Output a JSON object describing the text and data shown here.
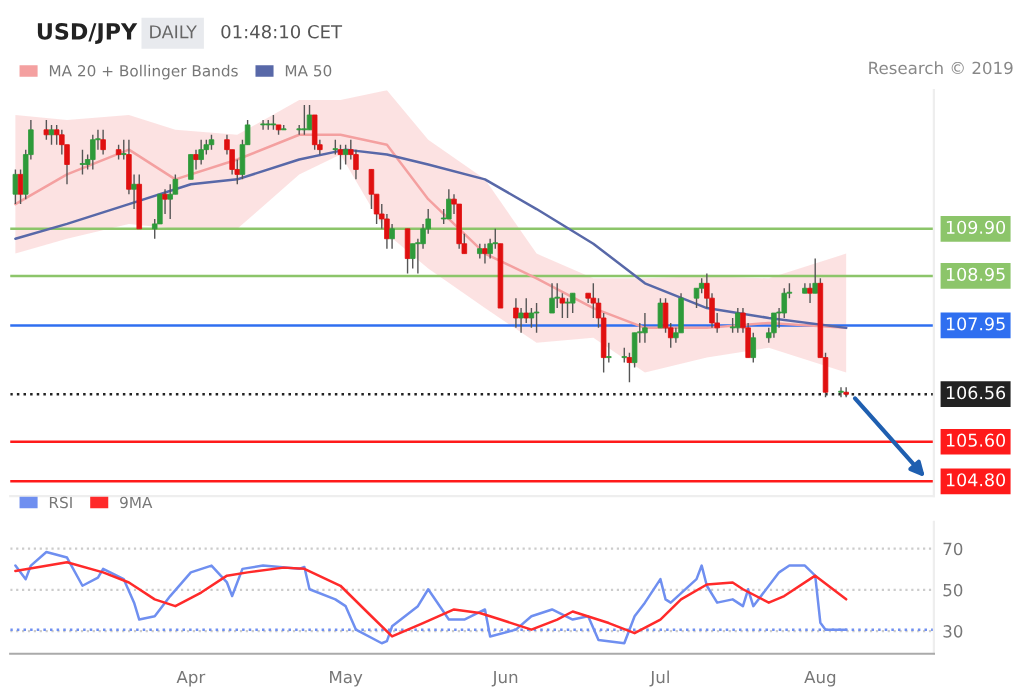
{
  "chart_data": [
    {
      "type": "candlestick",
      "title": "USD/JPY",
      "subtitle": "DAILY",
      "annotations": [
        "01:48:10 CET",
        "Research © 2019"
      ],
      "x": [
        "2019-02-26",
        "2019-02-27",
        "2019-02-28",
        "2019-03-01",
        "2019-03-04",
        "2019-03-05",
        "2019-03-06",
        "2019-03-07",
        "2019-03-08",
        "2019-03-11",
        "2019-03-12",
        "2019-03-13",
        "2019-03-14",
        "2019-03-15",
        "2019-03-18",
        "2019-03-19",
        "2019-03-20",
        "2019-03-21",
        "2019-03-22",
        "2019-03-25",
        "2019-03-26",
        "2019-03-27",
        "2019-03-28",
        "2019-03-29",
        "2019-04-01",
        "2019-04-02",
        "2019-04-03",
        "2019-04-04",
        "2019-04-05",
        "2019-04-08",
        "2019-04-09",
        "2019-04-10",
        "2019-04-11",
        "2019-04-12",
        "2019-04-15",
        "2019-04-16",
        "2019-04-17",
        "2019-04-18",
        "2019-04-19",
        "2019-04-22",
        "2019-04-23",
        "2019-04-24",
        "2019-04-25",
        "2019-04-26",
        "2019-04-29",
        "2019-04-30",
        "2019-05-01",
        "2019-05-02",
        "2019-05-03",
        "2019-05-06",
        "2019-05-07",
        "2019-05-08",
        "2019-05-09",
        "2019-05-10",
        "2019-05-13",
        "2019-05-14",
        "2019-05-15",
        "2019-05-16",
        "2019-05-17",
        "2019-05-20",
        "2019-05-21",
        "2019-05-22",
        "2019-05-23",
        "2019-05-24",
        "2019-05-27",
        "2019-05-28",
        "2019-05-29",
        "2019-05-30",
        "2019-05-31",
        "2019-06-03",
        "2019-06-04",
        "2019-06-05",
        "2019-06-06",
        "2019-06-07",
        "2019-06-10",
        "2019-06-11",
        "2019-06-12",
        "2019-06-13",
        "2019-06-14",
        "2019-06-17",
        "2019-06-18",
        "2019-06-19",
        "2019-06-20",
        "2019-06-21",
        "2019-06-24",
        "2019-06-25",
        "2019-06-26",
        "2019-06-27",
        "2019-06-28",
        "2019-07-01",
        "2019-07-02",
        "2019-07-03",
        "2019-07-04",
        "2019-07-05",
        "2019-07-08",
        "2019-07-09",
        "2019-07-10",
        "2019-07-11",
        "2019-07-12",
        "2019-07-15",
        "2019-07-16",
        "2019-07-17",
        "2019-07-18",
        "2019-07-19",
        "2019-07-22",
        "2019-07-23",
        "2019-07-24",
        "2019-07-25",
        "2019-07-26",
        "2019-07-29",
        "2019-07-30",
        "2019-07-31",
        "2019-08-01",
        "2019-08-02",
        "2019-08-05",
        "2019-08-06"
      ],
      "ohlc": [
        [
          110.6,
          111.1,
          110.4,
          111.0
        ],
        [
          111.0,
          111.1,
          110.4,
          110.6
        ],
        [
          110.6,
          111.5,
          110.5,
          111.4
        ],
        [
          111.4,
          112.1,
          111.3,
          111.9
        ],
        [
          111.9,
          112.1,
          111.7,
          111.8
        ],
        [
          111.8,
          112.0,
          111.6,
          111.9
        ],
        [
          111.9,
          112.0,
          111.6,
          111.8
        ],
        [
          111.8,
          111.9,
          111.4,
          111.6
        ],
        [
          111.6,
          111.6,
          110.8,
          111.2
        ],
        [
          111.2,
          111.5,
          111.0,
          111.2
        ],
        [
          111.2,
          111.4,
          111.1,
          111.3
        ],
        [
          111.3,
          111.8,
          111.1,
          111.7
        ],
        [
          111.7,
          111.9,
          111.5,
          111.7
        ],
        [
          111.7,
          111.9,
          111.4,
          111.5
        ],
        [
          111.5,
          111.6,
          111.3,
          111.4
        ],
        [
          111.4,
          111.7,
          111.3,
          111.4
        ],
        [
          111.4,
          111.7,
          110.6,
          110.7
        ],
        [
          110.7,
          111.0,
          110.3,
          110.8
        ],
        [
          110.8,
          111.0,
          109.9,
          109.9
        ],
        [
          109.9,
          110.1,
          109.7,
          110.0
        ],
        [
          110.0,
          110.6,
          110.0,
          110.6
        ],
        [
          110.6,
          110.7,
          110.2,
          110.5
        ],
        [
          110.5,
          110.8,
          110.1,
          110.6
        ],
        [
          110.6,
          111.0,
          110.6,
          110.9
        ],
        [
          110.9,
          111.4,
          110.9,
          111.4
        ],
        [
          111.4,
          111.5,
          111.1,
          111.3
        ],
        [
          111.3,
          111.7,
          111.2,
          111.5
        ],
        [
          111.5,
          111.7,
          111.4,
          111.6
        ],
        [
          111.6,
          111.8,
          111.5,
          111.7
        ],
        [
          111.7,
          111.8,
          111.4,
          111.5
        ],
        [
          111.5,
          111.5,
          111.0,
          111.1
        ],
        [
          111.1,
          111.3,
          110.8,
          111.0
        ],
        [
          111.0,
          111.7,
          110.9,
          111.6
        ],
        [
          111.6,
          112.1,
          111.6,
          112.0
        ],
        [
          112.0,
          112.1,
          111.9,
          112.0
        ],
        [
          112.0,
          112.1,
          111.9,
          112.0
        ],
        [
          112.0,
          112.2,
          111.9,
          112.0
        ],
        [
          112.0,
          112.0,
          111.8,
          111.9
        ],
        [
          111.9,
          112.0,
          111.9,
          111.9
        ],
        [
          111.9,
          112.0,
          111.8,
          111.9
        ],
        [
          111.9,
          112.4,
          111.8,
          111.9
        ],
        [
          111.9,
          112.4,
          111.9,
          112.2
        ],
        [
          112.2,
          112.2,
          111.5,
          111.6
        ],
        [
          111.6,
          111.7,
          111.4,
          111.5
        ],
        [
          111.5,
          111.7,
          111.4,
          111.5
        ],
        [
          111.5,
          111.6,
          111.1,
          111.4
        ],
        [
          111.4,
          111.6,
          111.2,
          111.5
        ],
        [
          111.5,
          111.7,
          111.3,
          111.4
        ],
        [
          111.4,
          111.5,
          110.9,
          111.1
        ],
        [
          111.1,
          111.1,
          110.3,
          110.6
        ],
        [
          110.6,
          110.6,
          110.0,
          110.2
        ],
        [
          110.2,
          110.4,
          109.9,
          110.1
        ],
        [
          110.1,
          110.2,
          109.5,
          109.7
        ],
        [
          109.7,
          110.0,
          109.5,
          109.9
        ],
        [
          109.9,
          109.9,
          109.0,
          109.3
        ],
        [
          109.3,
          109.6,
          109.1,
          109.6
        ],
        [
          109.6,
          109.7,
          109.0,
          109.6
        ],
        [
          109.6,
          110.0,
          109.5,
          109.9
        ],
        [
          109.9,
          110.3,
          109.8,
          110.1
        ],
        [
          110.1,
          110.3,
          110.0,
          110.1
        ],
        [
          110.1,
          110.7,
          110.1,
          110.5
        ],
        [
          110.5,
          110.6,
          110.2,
          110.4
        ],
        [
          110.4,
          110.4,
          109.5,
          109.6
        ],
        [
          109.6,
          109.8,
          109.4,
          109.4
        ],
        [
          109.4,
          109.6,
          109.3,
          109.5
        ],
        [
          109.5,
          109.6,
          109.2,
          109.4
        ],
        [
          109.4,
          109.7,
          109.3,
          109.6
        ],
        [
          109.6,
          109.9,
          109.5,
          109.6
        ],
        [
          109.6,
          109.6,
          108.3,
          108.3
        ],
        [
          108.3,
          108.5,
          107.9,
          108.1
        ],
        [
          108.1,
          108.3,
          107.8,
          108.2
        ],
        [
          108.2,
          108.5,
          108.0,
          108.1
        ],
        [
          108.1,
          108.3,
          107.9,
          108.2
        ],
        [
          108.2,
          108.4,
          107.8,
          108.2
        ],
        [
          108.2,
          108.8,
          108.2,
          108.5
        ],
        [
          108.5,
          108.8,
          108.3,
          108.5
        ],
        [
          108.5,
          108.6,
          108.1,
          108.4
        ],
        [
          108.4,
          108.5,
          108.1,
          108.4
        ],
        [
          108.4,
          108.6,
          108.2,
          108.6
        ],
        [
          108.6,
          108.6,
          108.4,
          108.5
        ],
        [
          108.5,
          108.8,
          108.1,
          108.4
        ],
        [
          108.4,
          108.5,
          107.9,
          108.1
        ],
        [
          108.1,
          108.2,
          107.0,
          107.3
        ],
        [
          107.3,
          107.6,
          107.2,
          107.3
        ],
        [
          107.3,
          107.5,
          107.2,
          107.3
        ],
        [
          107.3,
          107.4,
          106.8,
          107.2
        ],
        [
          107.2,
          107.8,
          107.1,
          107.8
        ],
        [
          107.8,
          108.0,
          107.6,
          107.8
        ],
        [
          107.8,
          108.2,
          107.6,
          107.9
        ],
        [
          107.9,
          108.5,
          107.9,
          108.4
        ],
        [
          108.4,
          108.5,
          107.8,
          107.9
        ],
        [
          107.9,
          108.0,
          107.5,
          107.7
        ],
        [
          107.7,
          107.9,
          107.6,
          107.8
        ],
        [
          107.8,
          108.6,
          107.8,
          108.5
        ],
        [
          108.5,
          108.7,
          108.3,
          108.7
        ],
        [
          108.7,
          108.9,
          108.6,
          108.8
        ],
        [
          108.8,
          109.0,
          108.3,
          108.5
        ],
        [
          108.5,
          108.6,
          107.9,
          108.0
        ],
        [
          108.0,
          108.2,
          107.8,
          107.9
        ],
        [
          107.9,
          108.1,
          107.8,
          107.9
        ],
        [
          107.9,
          108.3,
          107.8,
          108.2
        ],
        [
          108.2,
          108.3,
          107.8,
          107.9
        ],
        [
          107.9,
          108.0,
          107.3,
          107.3
        ],
        [
          107.3,
          107.8,
          107.2,
          107.7
        ],
        [
          107.7,
          107.9,
          107.6,
          107.8
        ],
        [
          107.8,
          108.2,
          107.7,
          108.2
        ],
        [
          108.2,
          108.3,
          107.9,
          108.2
        ],
        [
          108.2,
          108.7,
          108.1,
          108.6
        ],
        [
          108.6,
          108.8,
          108.5,
          108.6
        ],
        [
          108.6,
          108.8,
          108.6,
          108.7
        ],
        [
          108.7,
          108.8,
          108.4,
          108.6
        ],
        [
          108.6,
          109.3,
          108.6,
          108.8
        ],
        [
          108.8,
          108.9,
          107.3,
          107.3
        ],
        [
          107.3,
          107.4,
          106.5,
          106.6
        ],
        [
          106.6,
          106.7,
          106.5,
          106.6
        ],
        [
          106.6,
          106.7,
          106.5,
          106.56
        ]
      ],
      "series": [
        {
          "name": "MA 20 + Bollinger Bands",
          "type": "line",
          "color": "#f4a0a0",
          "x": [
            "2019-02-26",
            "2019-03-08",
            "2019-03-20",
            "2019-03-29",
            "2019-04-10",
            "2019-04-22",
            "2019-04-30",
            "2019-05-09",
            "2019-05-17",
            "2019-05-28",
            "2019-06-07",
            "2019-06-18",
            "2019-06-28",
            "2019-07-10",
            "2019-07-22",
            "2019-08-06"
          ],
          "values": [
            110.4,
            111.0,
            111.5,
            110.9,
            111.3,
            111.8,
            111.8,
            111.6,
            110.5,
            109.4,
            108.9,
            108.3,
            107.9,
            107.9,
            108.0,
            107.9
          ],
          "lower": [
            109.4,
            109.7,
            110.0,
            109.9,
            109.9,
            111.0,
            111.4,
            109.8,
            109.1,
            108.3,
            107.6,
            107.7,
            107.0,
            107.3,
            107.5,
            107.0
          ],
          "upper": [
            112.2,
            112.1,
            112.2,
            111.9,
            111.8,
            112.5,
            112.5,
            112.7,
            111.7,
            110.9,
            109.4,
            108.9,
            108.9,
            108.95,
            108.9,
            109.4
          ]
        },
        {
          "name": "MA 50",
          "type": "line",
          "color": "#5868a8",
          "x": [
            "2019-02-26",
            "2019-03-08",
            "2019-03-20",
            "2019-04-01",
            "2019-04-10",
            "2019-04-22",
            "2019-05-01",
            "2019-05-09",
            "2019-05-17",
            "2019-05-28",
            "2019-06-07",
            "2019-06-18",
            "2019-06-28",
            "2019-07-10",
            "2019-07-22",
            "2019-08-06"
          ],
          "values": [
            109.7,
            110.0,
            110.4,
            110.8,
            110.9,
            111.3,
            111.5,
            111.4,
            111.2,
            110.9,
            110.3,
            109.6,
            108.8,
            108.3,
            108.1,
            107.9
          ]
        }
      ],
      "xlim": [
        "2019-02-25",
        "2019-08-23"
      ],
      "ylim": [
        104.5,
        112.7
      ],
      "ref_lines": [
        {
          "axis": "y",
          "value": 109.9,
          "label": "109.90",
          "color": "#8cc56a"
        },
        {
          "axis": "y",
          "value": 108.95,
          "label": "108.95",
          "color": "#8cc56a"
        },
        {
          "axis": "y",
          "value": 107.95,
          "label": "107.95",
          "color": "#2f6ff0"
        },
        {
          "axis": "y",
          "value": 106.56,
          "label": "106.56",
          "color": "#222222",
          "line_style": "dotted"
        },
        {
          "axis": "y",
          "value": 105.6,
          "label": "105.60",
          "color": "#ff1a1a"
        },
        {
          "axis": "y",
          "value": 104.8,
          "label": "104.80",
          "color": "#ff1a1a"
        }
      ],
      "legend": "top left",
      "tick_labels": false
    },
    {
      "type": "line",
      "series": [
        {
          "name": "RSI",
          "color": "#6f8ff0",
          "x": [
            "2019-02-26",
            "2019-02-28",
            "2019-03-01",
            "2019-03-04",
            "2019-03-08",
            "2019-03-11",
            "2019-03-14",
            "2019-03-15",
            "2019-03-19",
            "2019-03-21",
            "2019-03-22",
            "2019-03-25",
            "2019-03-28",
            "2019-04-01",
            "2019-04-05",
            "2019-04-08",
            "2019-04-09",
            "2019-04-11",
            "2019-04-15",
            "2019-04-22",
            "2019-04-23",
            "2019-04-24",
            "2019-04-29",
            "2019-05-01",
            "2019-05-03",
            "2019-05-08",
            "2019-05-09",
            "2019-05-10",
            "2019-05-15",
            "2019-05-17",
            "2019-05-21",
            "2019-05-24",
            "2019-05-28",
            "2019-05-29",
            "2019-06-03",
            "2019-06-06",
            "2019-06-10",
            "2019-06-14",
            "2019-06-17",
            "2019-06-19",
            "2019-06-24",
            "2019-06-26",
            "2019-06-28",
            "2019-07-01",
            "2019-07-02",
            "2019-07-03",
            "2019-07-08",
            "2019-07-09",
            "2019-07-10",
            "2019-07-12",
            "2019-07-15",
            "2019-07-17",
            "2019-07-18",
            "2019-07-19",
            "2019-07-24",
            "2019-07-26",
            "2019-07-29",
            "2019-07-31",
            "2019-08-01",
            "2019-08-02",
            "2019-08-06"
          ],
          "values": [
            61.8,
            55.2,
            61.8,
            68.4,
            65.7,
            52.0,
            55.9,
            60.2,
            55.2,
            43.8,
            35.6,
            37.2,
            47.0,
            58.5,
            61.8,
            53.6,
            47.0,
            60.2,
            61.8,
            60.2,
            61.1,
            50.3,
            45.4,
            42.1,
            30.7,
            24.1,
            25.1,
            32.3,
            42.1,
            50.3,
            35.6,
            35.6,
            40.5,
            27.4,
            30.7,
            37.2,
            40.5,
            35.6,
            37.2,
            25.7,
            24.1,
            37.2,
            43.8,
            55.2,
            45.4,
            43.8,
            55.2,
            61.8,
            52.0,
            43.8,
            45.4,
            42.1,
            50.3,
            42.1,
            58.5,
            61.8,
            61.8,
            56.9,
            34.0,
            30.7,
            30.7
          ]
        },
        {
          "name": "9MA",
          "color": "#ff2a2a",
          "x": [
            "2019-02-26",
            "2019-03-08",
            "2019-03-15",
            "2019-03-20",
            "2019-03-25",
            "2019-03-29",
            "2019-04-03",
            "2019-04-08",
            "2019-04-12",
            "2019-04-19",
            "2019-04-23",
            "2019-04-30",
            "2019-05-06",
            "2019-05-10",
            "2019-05-16",
            "2019-05-22",
            "2019-05-27",
            "2019-05-31",
            "2019-06-06",
            "2019-06-11",
            "2019-06-14",
            "2019-06-21",
            "2019-06-26",
            "2019-07-01",
            "2019-07-05",
            "2019-07-10",
            "2019-07-15",
            "2019-07-17",
            "2019-07-22",
            "2019-07-25",
            "2019-07-31",
            "2019-08-06"
          ],
          "values": [
            59.2,
            63.4,
            58.5,
            53.6,
            45.4,
            42.1,
            48.7,
            56.9,
            58.5,
            60.8,
            60.2,
            52.0,
            37.2,
            27.4,
            33.9,
            40.5,
            38.8,
            35.6,
            30.7,
            35.6,
            39.5,
            33.9,
            29.0,
            35.6,
            45.4,
            52.6,
            53.6,
            50.3,
            43.8,
            47.0,
            56.9,
            45.4
          ]
        }
      ],
      "xlim": [
        "2019-02-25",
        "2019-08-23"
      ],
      "xticks": [
        {
          "value": "2019-04-01",
          "label": "Apr"
        },
        {
          "value": "2019-05-01",
          "label": "May"
        },
        {
          "value": "2019-06-01",
          "label": "Jun"
        },
        {
          "value": "2019-07-01",
          "label": "Jul"
        },
        {
          "value": "2019-08-01",
          "label": "Aug"
        }
      ],
      "ylim": [
        19,
        83
      ],
      "yticks": [
        30,
        50,
        70
      ],
      "grid": "y",
      "ref_lines": [
        {
          "axis": "y",
          "value": 30.7,
          "color": "#6f8ff0",
          "line_style": "dotted"
        }
      ],
      "legend": "top left"
    }
  ]
}
